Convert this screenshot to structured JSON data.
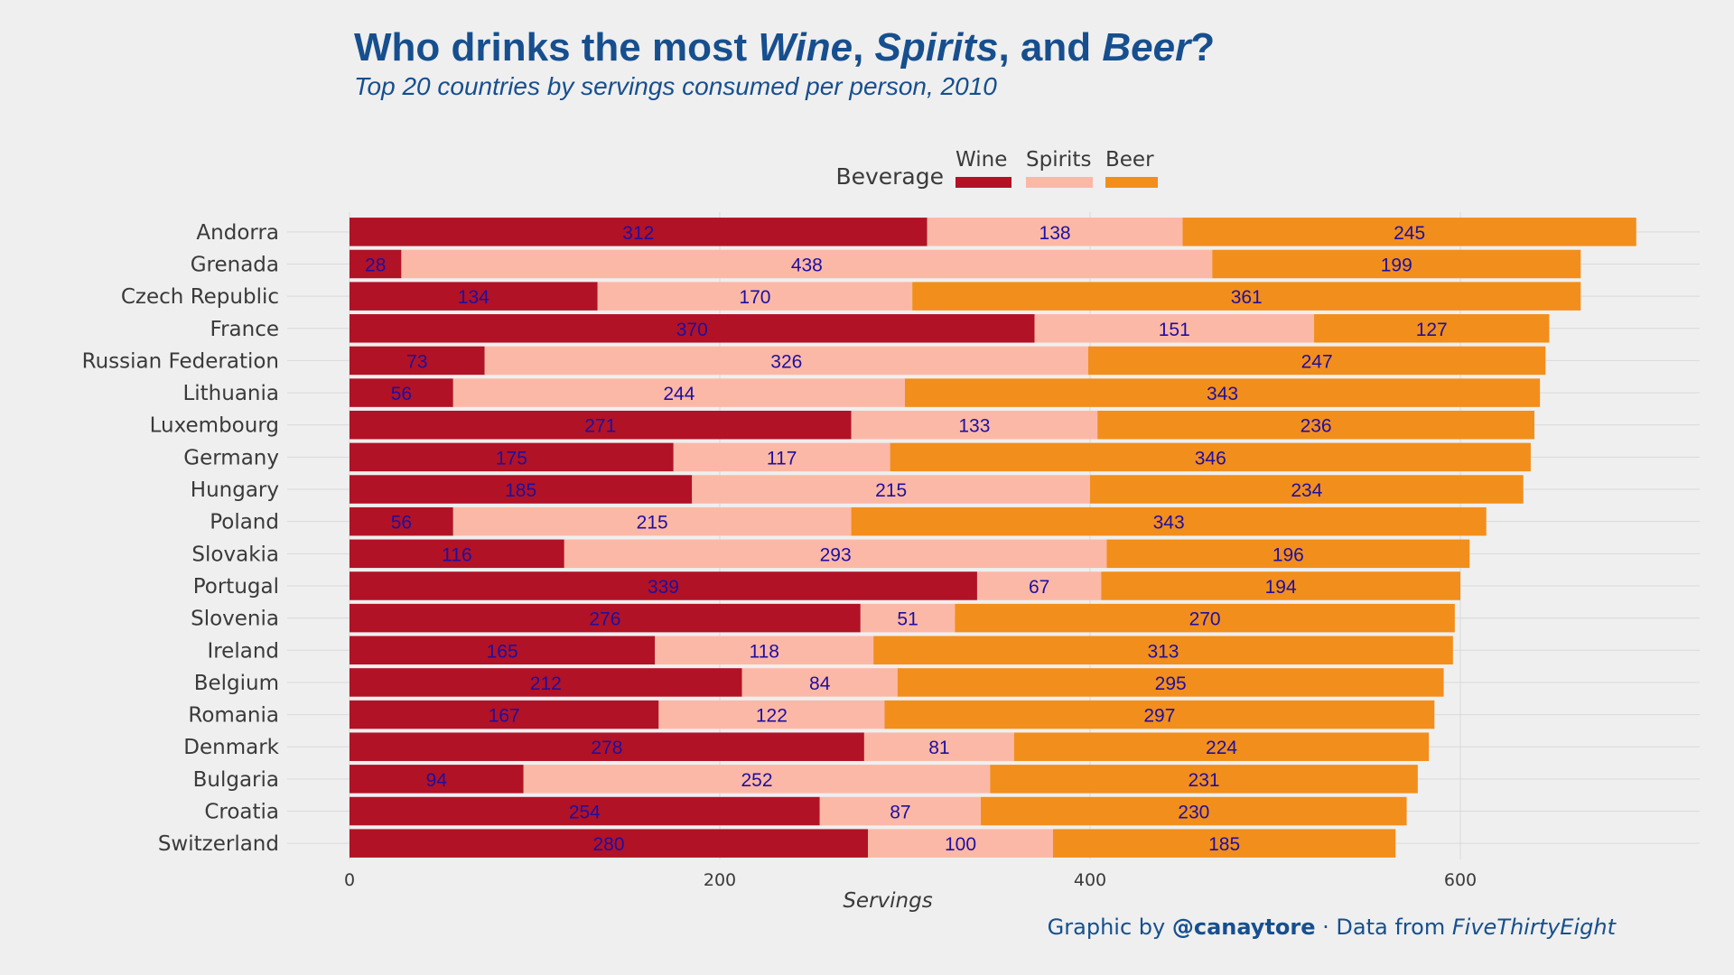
{
  "title": {
    "prefix": "Who drinks the most ",
    "wine": "Wine",
    "sep1": ", ",
    "spirits": "Spirits",
    "sep2": ", and ",
    "beer": "Beer",
    "suffix": "?"
  },
  "subtitle": "Top 20 countries by servings consumed per person, 2010",
  "credit": {
    "prefix": "Graphic by ",
    "handle": "@canaytore",
    "dot": " ·   Data from ",
    "source": "FiveThirtyEight"
  },
  "colors": {
    "wine": "#b11226",
    "spirits": "#fcb8a6",
    "beer": "#f28e1c",
    "value_label": "#1f0fa0",
    "title": "#174f8e",
    "text": "#3a3a3a",
    "grid": "#d9d9d9"
  },
  "chart_data": {
    "type": "bar",
    "orientation": "horizontal",
    "stacked": true,
    "xlabel": "Servings",
    "ylabel": "",
    "xlim": [
      0,
      725
    ],
    "xticks": [
      0,
      200,
      400,
      600
    ],
    "grid": true,
    "legend": {
      "title": "Beverage",
      "position": "top",
      "entries": [
        "Wine",
        "Spirits",
        "Beer"
      ]
    },
    "categories": [
      "Andorra",
      "Grenada",
      "Czech Republic",
      "France",
      "Russian Federation",
      "Lithuania",
      "Luxembourg",
      "Germany",
      "Hungary",
      "Poland",
      "Slovakia",
      "Portugal",
      "Slovenia",
      "Ireland",
      "Belgium",
      "Romania",
      "Denmark",
      "Bulgaria",
      "Croatia",
      "Switzerland"
    ],
    "series": [
      {
        "name": "Wine",
        "values": [
          312,
          28,
          134,
          370,
          73,
          56,
          271,
          175,
          185,
          56,
          116,
          339,
          276,
          165,
          212,
          167,
          278,
          94,
          254,
          280
        ]
      },
      {
        "name": "Spirits",
        "values": [
          138,
          438,
          170,
          151,
          326,
          244,
          133,
          117,
          215,
          215,
          293,
          67,
          51,
          118,
          84,
          122,
          81,
          252,
          87,
          100
        ]
      },
      {
        "name": "Beer",
        "values": [
          245,
          199,
          361,
          127,
          247,
          343,
          236,
          346,
          234,
          343,
          196,
          194,
          270,
          313,
          295,
          297,
          224,
          231,
          230,
          185
        ]
      }
    ]
  }
}
